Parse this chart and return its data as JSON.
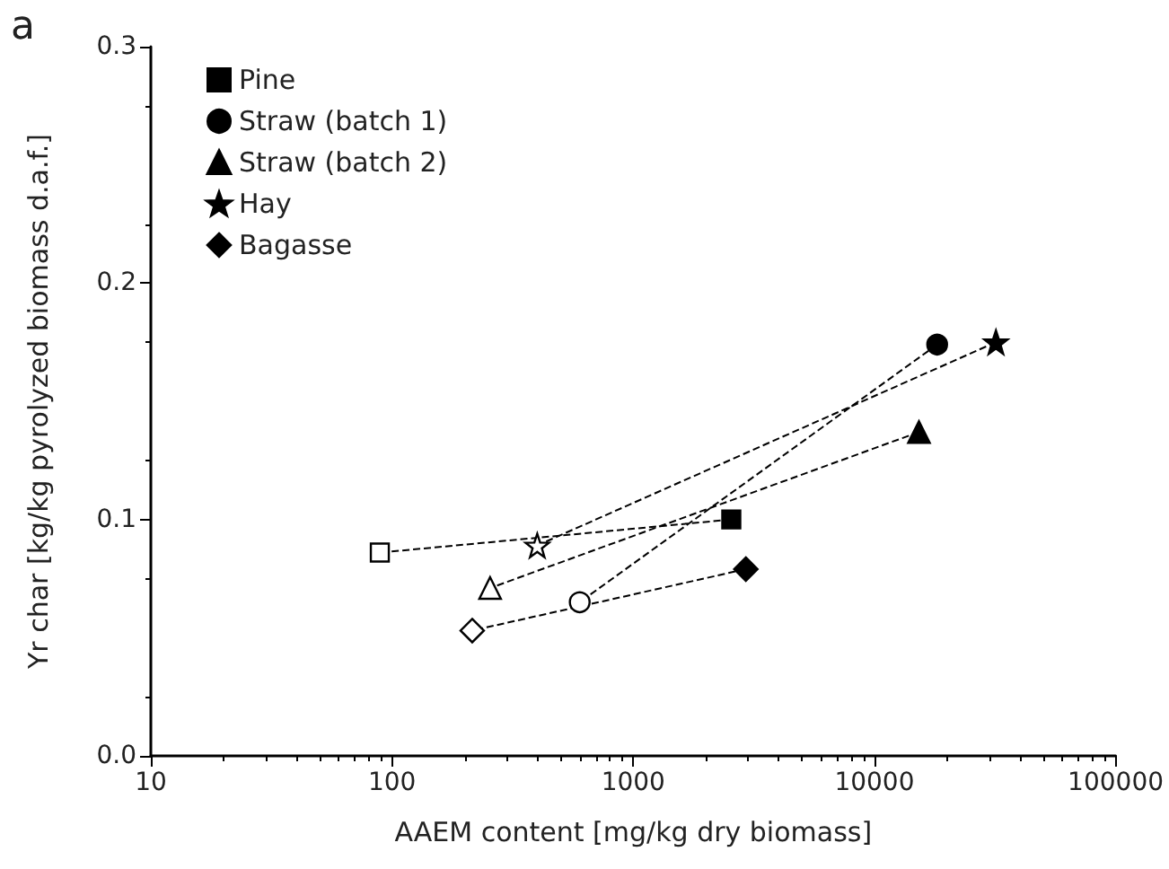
{
  "chart_data": {
    "type": "line",
    "xlabel": "AAEM content [mg/kg dry biomass]",
    "ylabel": "Yr char [kg/kg pyrolyzed biomass d.a.f.]",
    "annotations": [
      "a"
    ],
    "log": "x",
    "xlim": [
      10,
      100000
    ],
    "xticks": [
      10,
      100,
      1000,
      10000,
      100000
    ],
    "ylim": [
      0,
      0.3
    ],
    "yticks": [
      {
        "value": 0,
        "label": "0.0"
      },
      0.1,
      0.2,
      0.3
    ],
    "grid": false,
    "legend": "top left",
    "line_style": "dashed",
    "series": [
      {
        "name": "Pine",
        "marker": "square",
        "color": "#000000",
        "colors": [
          "#000000",
          "#ffffff"
        ],
        "x": [
          2550,
          89
        ],
        "values": [
          0.1,
          0.086
        ]
      },
      {
        "name": "Straw (batch 1)",
        "marker": "circle",
        "color": "#000000",
        "colors": [
          "#000000",
          "#ffffff"
        ],
        "x": [
          18200,
          600
        ],
        "values": [
          0.174,
          0.065
        ]
      },
      {
        "name": "Straw (batch 2)",
        "marker": "triangle",
        "color": "#000000",
        "colors": [
          "#000000",
          "#ffffff"
        ],
        "x": [
          15300,
          255
        ],
        "values": [
          0.137,
          0.071
        ]
      },
      {
        "name": "Hay",
        "marker": "star",
        "color": "#000000",
        "colors": [
          "#000000",
          "#ffffff"
        ],
        "x": [
          31900,
          400
        ],
        "values": [
          0.175,
          0.089
        ]
      },
      {
        "name": "Bagasse",
        "marker": "diamond",
        "color": "#000000",
        "colors": [
          "#000000",
          "#ffffff"
        ],
        "x": [
          2930,
          215
        ],
        "values": [
          0.079,
          0.053
        ]
      }
    ]
  }
}
